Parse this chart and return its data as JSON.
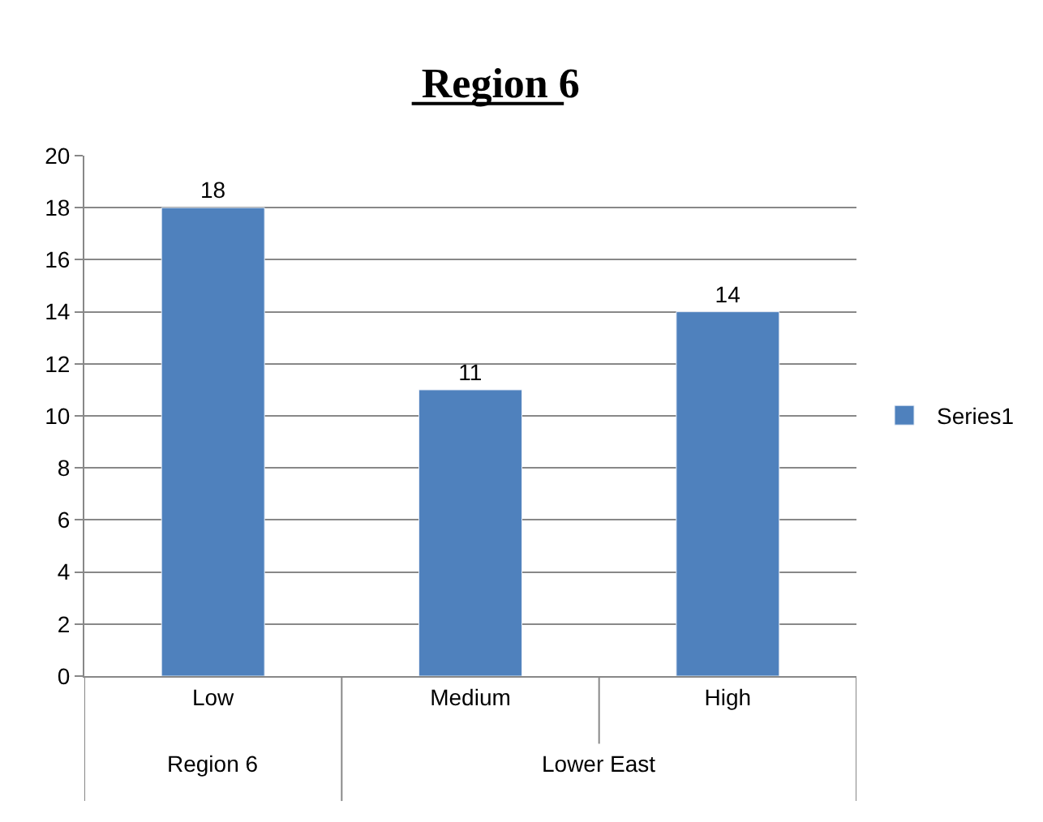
{
  "chart_data": {
    "type": "bar",
    "title": "Region 6",
    "categories": [
      "Low",
      "Medium",
      "High"
    ],
    "series": [
      {
        "name": "Series1",
        "color": "#4f81bd",
        "values": [
          18,
          11,
          14
        ]
      }
    ],
    "annotations": [
      "Region 6",
      "Lower East"
    ],
    "ylim": [
      0,
      20
    ],
    "yticks": [
      0,
      2,
      4,
      6,
      8,
      10,
      12,
      14,
      16,
      18,
      20
    ],
    "grid": "y",
    "legend": "right",
    "data_labels": true
  }
}
